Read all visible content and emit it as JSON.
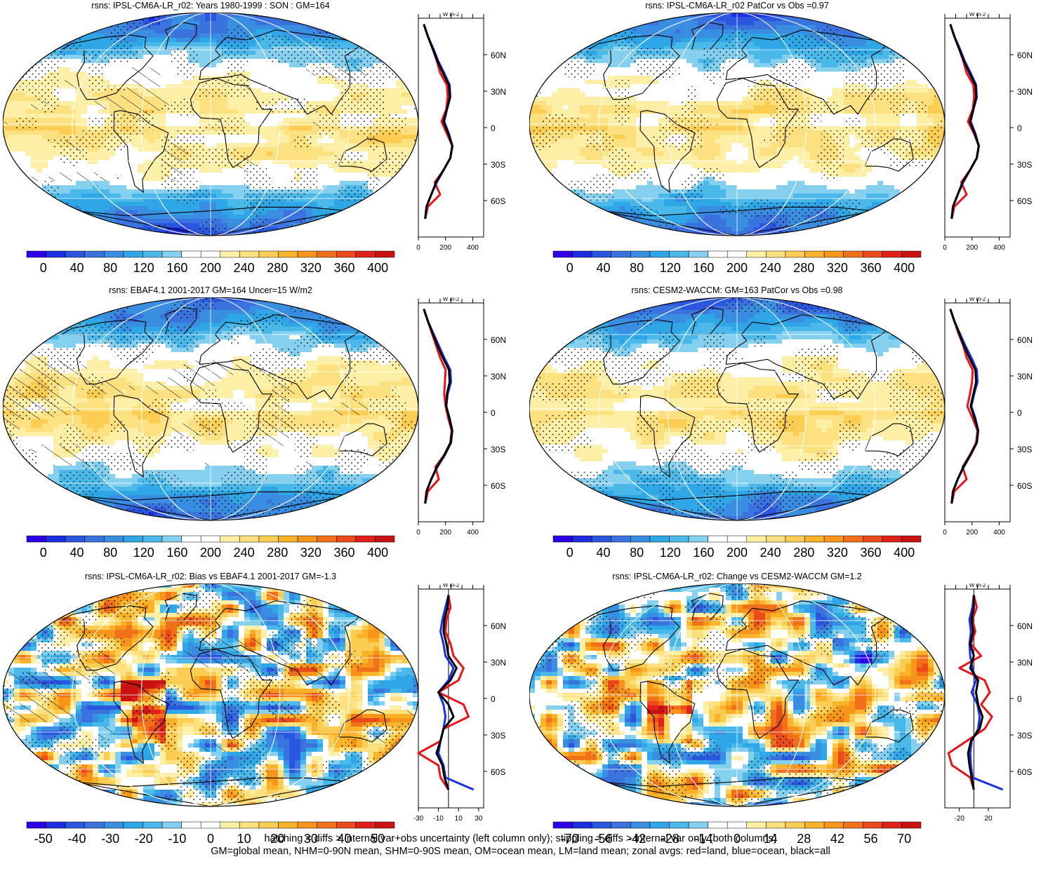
{
  "footer": {
    "line1": "hatching = diffs > internal var+obs uncertainty (left column only); stippling = diffs > internal var only (both columns)",
    "line2": "GM=global mean, NHM=0-90N mean, SHM=0-90S mean, OM=ocean mean, LM=land mean; zonal avgs: red=land, blue=ocean, black=all"
  },
  "chart_data": [
    {
      "type": "heatmap",
      "title": "rsns: IPSL-CM6A-LR_r02: Years 1980-1999 : SON : GM=164",
      "colorbar_ticks": [
        "0",
        "40",
        "80",
        "120",
        "160",
        "200",
        "240",
        "280",
        "320",
        "360",
        "400"
      ],
      "colorbar_range": [
        -20,
        420
      ],
      "zonal": {
        "units": "W m-2",
        "xticks": [
          "0",
          "200",
          "400"
        ],
        "xlim": [
          0,
          480
        ],
        "lat_ticks": [
          "60N",
          "30N",
          "0",
          "30S",
          "60S"
        ],
        "lat": [
          85,
          75,
          65,
          55,
          45,
          35,
          25,
          15,
          5,
          -5,
          -15,
          -25,
          -35,
          -45,
          -55,
          -65,
          -75
        ],
        "land": [
          40,
          70,
          105,
          135,
          160,
          210,
          215,
          205,
          170,
          210,
          250,
          235,
          185,
          120,
          160,
          70,
          50
        ],
        "ocean": [
          40,
          70,
          110,
          145,
          190,
          230,
          235,
          210,
          190,
          225,
          250,
          235,
          185,
          135,
          95,
          60,
          50
        ],
        "all": [
          40,
          70,
          105,
          140,
          180,
          225,
          230,
          210,
          185,
          220,
          250,
          235,
          185,
          130,
          95,
          60,
          50
        ]
      }
    },
    {
      "type": "heatmap",
      "title": "rsns: IPSL-CM6A-LR_r02 PatCor vs Obs =0.97",
      "colorbar_ticks": [
        "0",
        "40",
        "80",
        "120",
        "160",
        "200",
        "240",
        "280",
        "320",
        "360",
        "400"
      ],
      "colorbar_range": [
        -20,
        420
      ],
      "zonal": {
        "units": "W m-2",
        "xticks": [
          "0",
          "200",
          "400"
        ],
        "xlim": [
          0,
          480
        ],
        "lat_ticks": [
          "60N",
          "30N",
          "0",
          "30S",
          "60S"
        ],
        "lat": [
          85,
          75,
          65,
          55,
          45,
          35,
          25,
          15,
          5,
          -5,
          -15,
          -25,
          -35,
          -45,
          -55,
          -65,
          -75
        ],
        "land": [
          40,
          70,
          105,
          135,
          160,
          210,
          215,
          205,
          170,
          215,
          250,
          235,
          185,
          120,
          160,
          70,
          50
        ],
        "ocean": [
          40,
          70,
          110,
          145,
          190,
          230,
          235,
          210,
          190,
          225,
          250,
          235,
          185,
          135,
          95,
          60,
          50
        ],
        "all": [
          40,
          70,
          105,
          140,
          180,
          225,
          230,
          210,
          185,
          220,
          250,
          235,
          185,
          130,
          95,
          60,
          50
        ]
      }
    },
    {
      "type": "heatmap",
      "title": "rsns: EBAF4.1 2001-2017 GM=164 Uncer=15 W/m2",
      "colorbar_ticks": [
        "0",
        "40",
        "80",
        "120",
        "160",
        "200",
        "240",
        "280",
        "320",
        "360",
        "400"
      ],
      "colorbar_range": [
        -20,
        420
      ],
      "zonal": {
        "units": "W m-2",
        "xticks": [
          "0",
          "200",
          "400"
        ],
        "xlim": [
          0,
          480
        ],
        "lat_ticks": [
          "60N",
          "30N",
          "0",
          "30S",
          "60S"
        ],
        "lat": [
          85,
          75,
          65,
          55,
          45,
          35,
          25,
          15,
          5,
          -5,
          -15,
          -25,
          -35,
          -45,
          -55,
          -65,
          -75
        ],
        "land": [
          40,
          70,
          100,
          130,
          160,
          200,
          195,
          190,
          200,
          220,
          245,
          235,
          190,
          125,
          150,
          70,
          50
        ],
        "ocean": [
          40,
          70,
          110,
          150,
          190,
          235,
          240,
          215,
          205,
          230,
          250,
          240,
          195,
          140,
          95,
          60,
          50
        ],
        "all": [
          40,
          70,
          105,
          140,
          180,
          225,
          230,
          210,
          205,
          228,
          248,
          238,
          192,
          135,
          95,
          60,
          50
        ]
      }
    },
    {
      "type": "heatmap",
      "title": "rsns: CESM2-WACCM: GM=163 PatCor vs Obs =0.98",
      "colorbar_ticks": [
        "0",
        "40",
        "80",
        "120",
        "160",
        "200",
        "240",
        "280",
        "320",
        "360",
        "400"
      ],
      "colorbar_range": [
        -20,
        420
      ],
      "zonal": {
        "units": "W m-2",
        "xticks": [
          "0",
          "200",
          "400"
        ],
        "xlim": [
          0,
          480
        ],
        "lat_ticks": [
          "60N",
          "30N",
          "0",
          "30S",
          "60S"
        ],
        "lat": [
          85,
          75,
          65,
          55,
          45,
          35,
          25,
          15,
          5,
          -5,
          -15,
          -25,
          -35,
          -45,
          -55,
          -65,
          -75
        ],
        "land": [
          40,
          70,
          100,
          135,
          160,
          205,
          200,
          185,
          165,
          205,
          240,
          230,
          185,
          130,
          160,
          70,
          50
        ],
        "ocean": [
          40,
          70,
          110,
          150,
          195,
          235,
          240,
          215,
          195,
          225,
          245,
          235,
          190,
          140,
          95,
          60,
          50
        ],
        "all": [
          40,
          70,
          105,
          140,
          180,
          225,
          230,
          210,
          190,
          220,
          245,
          235,
          188,
          135,
          95,
          60,
          50
        ]
      }
    },
    {
      "type": "heatmap",
      "title": "rsns: IPSL-CM6A-LR_r02: Bias vs EBAF4.1 2001-2017  GM=-1.3",
      "colorbar_ticks": [
        "-50",
        "-40",
        "-30",
        "-20",
        "-10",
        "0",
        "10",
        "20",
        "30",
        "40",
        "50"
      ],
      "colorbar_range": [
        -55,
        55
      ],
      "zonal": {
        "units": "W m-2",
        "xticks": [
          "-30",
          "-10",
          "10",
          "30"
        ],
        "xlim": [
          -30,
          35
        ],
        "lat_ticks": [
          "60N",
          "30N",
          "0",
          "30S",
          "60S"
        ],
        "lat": [
          85,
          75,
          65,
          55,
          45,
          35,
          25,
          15,
          5,
          -5,
          -15,
          -25,
          -35,
          -45,
          -55,
          -65,
          -75
        ],
        "land": [
          0,
          2,
          -2,
          -3,
          2,
          5,
          15,
          10,
          -10,
          15,
          20,
          -5,
          -8,
          -30,
          -10,
          -8,
          0
        ],
        "ocean": [
          0,
          -3,
          -6,
          -8,
          -5,
          -3,
          5,
          0,
          -10,
          -5,
          -3,
          -5,
          -8,
          -10,
          -5,
          -3,
          25
        ],
        "all": [
          0,
          -1,
          -4,
          -5,
          -2,
          0,
          8,
          2,
          -10,
          0,
          5,
          -5,
          -8,
          -12,
          -6,
          -4,
          0
        ]
      }
    },
    {
      "type": "heatmap",
      "title": "rsns: IPSL-CM6A-LR_r02: Change vs CESM2-WACCM GM=1.2",
      "colorbar_ticks": [
        "-70",
        "-56",
        "-42",
        "-28",
        "-14",
        "0",
        "14",
        "28",
        "42",
        "56",
        "70"
      ],
      "colorbar_range": [
        -77,
        77
      ],
      "zonal": {
        "units": "W m-2",
        "xticks": [
          "-20",
          "20"
        ],
        "xlim": [
          -40,
          50
        ],
        "lat_ticks": [
          "60N",
          "30N",
          "0",
          "30S",
          "60S"
        ],
        "lat": [
          85,
          75,
          65,
          55,
          45,
          35,
          25,
          15,
          5,
          -5,
          -15,
          -25,
          -35,
          -45,
          -55,
          -65,
          -75
        ],
        "land": [
          0,
          4,
          -2,
          2,
          -4,
          10,
          -20,
          15,
          22,
          10,
          25,
          15,
          -10,
          -35,
          -30,
          -5,
          0
        ],
        "ocean": [
          0,
          -2,
          -6,
          -4,
          -6,
          -5,
          -2,
          3,
          -3,
          5,
          8,
          6,
          -3,
          -5,
          -4,
          -2,
          40
        ],
        "all": [
          0,
          0,
          -3,
          -1,
          -5,
          0,
          -5,
          6,
          3,
          6,
          12,
          8,
          -4,
          -8,
          -6,
          -3,
          0
        ]
      }
    }
  ]
}
